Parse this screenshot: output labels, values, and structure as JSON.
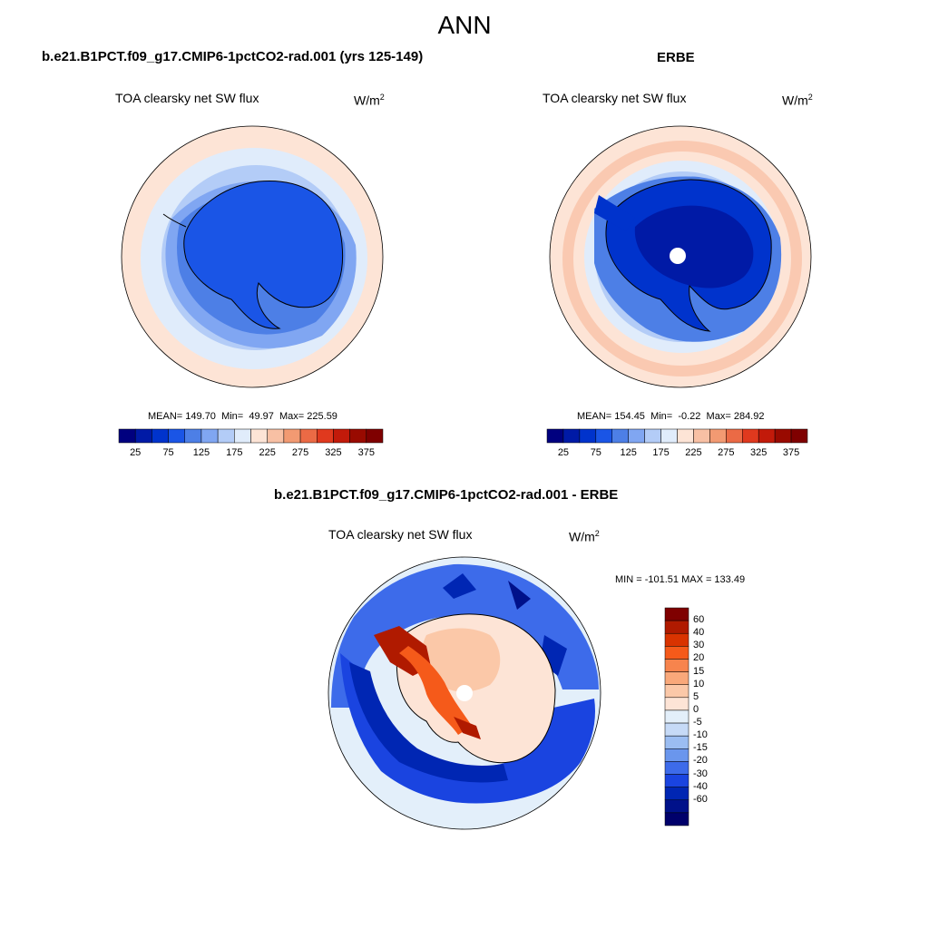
{
  "title": "ANN",
  "panels": {
    "model": {
      "title": "b.e21.B1PCT.f09_g17.CMIP6-1pctCO2-rad.001 (yrs 125-149)",
      "variable": "TOA clearsky net SW flux",
      "units": "W/m",
      "units_exp": "2",
      "stats": {
        "mean_label": "MEAN=",
        "mean": "149.70",
        "min_label": "Min=",
        "min": "49.97",
        "max_label": "Max=",
        "max": "225.59"
      }
    },
    "obs": {
      "title": "ERBE",
      "variable": "TOA clearsky net SW flux",
      "units": "W/m",
      "units_exp": "2",
      "stats": {
        "mean_label": "MEAN=",
        "mean": "154.45",
        "min_label": "Min=",
        "min": "-0.22",
        "max_label": "Max=",
        "max": "284.92"
      }
    },
    "diff": {
      "title": "b.e21.B1PCT.f09_g17.CMIP6-1pctCO2-rad.001 - ERBE",
      "variable": "TOA clearsky net SW flux",
      "units": "W/m",
      "units_exp": "2",
      "minmax": "MIN = -101.51  MAX = 133.49"
    }
  },
  "colorbar_abs": {
    "labels": [
      "25",
      "75",
      "125",
      "175",
      "225",
      "275",
      "325",
      "375"
    ],
    "colors": [
      "#00007f",
      "#001aa6",
      "#0033cc",
      "#1a55e6",
      "#4d7fe6",
      "#80a6f2",
      "#b3ccf7",
      "#e0ecfb",
      "#fde4d6",
      "#f8c0a4",
      "#f29a72",
      "#eb6a45",
      "#e0391e",
      "#c21a0a",
      "#990a00",
      "#7f0000"
    ]
  },
  "colorbar_diff": {
    "labels": [
      "60",
      "40",
      "30",
      "20",
      "15",
      "10",
      "5",
      "0",
      "-5",
      "-10",
      "-15",
      "-20",
      "-30",
      "-40",
      "-60"
    ],
    "colors": [
      "#7f0000",
      "#b01a00",
      "#d93300",
      "#f55a1a",
      "#f7844d",
      "#f9a87a",
      "#fbc8a8",
      "#fde4d6",
      "#e3effa",
      "#c6daf7",
      "#9bbdf2",
      "#6a96ed",
      "#3d6bea",
      "#1a44e0",
      "#0026b3",
      "#00118a",
      "#00006b"
    ]
  },
  "chart_data": [
    {
      "type": "heatmap",
      "projection": "south-polar-stereographic",
      "title": "b.e21.B1PCT.f09_g17.CMIP6-1pctCO2-rad.001 (yrs 125-149)",
      "variable": "TOA clearsky net SW flux",
      "units": "W/m2",
      "mean": 149.7,
      "min": 49.97,
      "max": 225.59,
      "levels": [
        25,
        50,
        75,
        100,
        125,
        150,
        175,
        200,
        225,
        250,
        275,
        300,
        325,
        350,
        375
      ]
    },
    {
      "type": "heatmap",
      "projection": "south-polar-stereographic",
      "title": "ERBE",
      "variable": "TOA clearsky net SW flux",
      "units": "W/m2",
      "mean": 154.45,
      "min": -0.22,
      "max": 284.92,
      "levels": [
        25,
        50,
        75,
        100,
        125,
        150,
        175,
        200,
        225,
        250,
        275,
        300,
        325,
        350,
        375
      ]
    },
    {
      "type": "heatmap",
      "projection": "south-polar-stereographic",
      "title": "b.e21.B1PCT.f09_g17.CMIP6-1pctCO2-rad.001 - ERBE",
      "variable": "TOA clearsky net SW flux",
      "units": "W/m2",
      "min": -101.51,
      "max": 133.49,
      "levels": [
        -60,
        -40,
        -30,
        -20,
        -15,
        -10,
        -5,
        0,
        5,
        10,
        15,
        20,
        30,
        40,
        60
      ]
    }
  ]
}
